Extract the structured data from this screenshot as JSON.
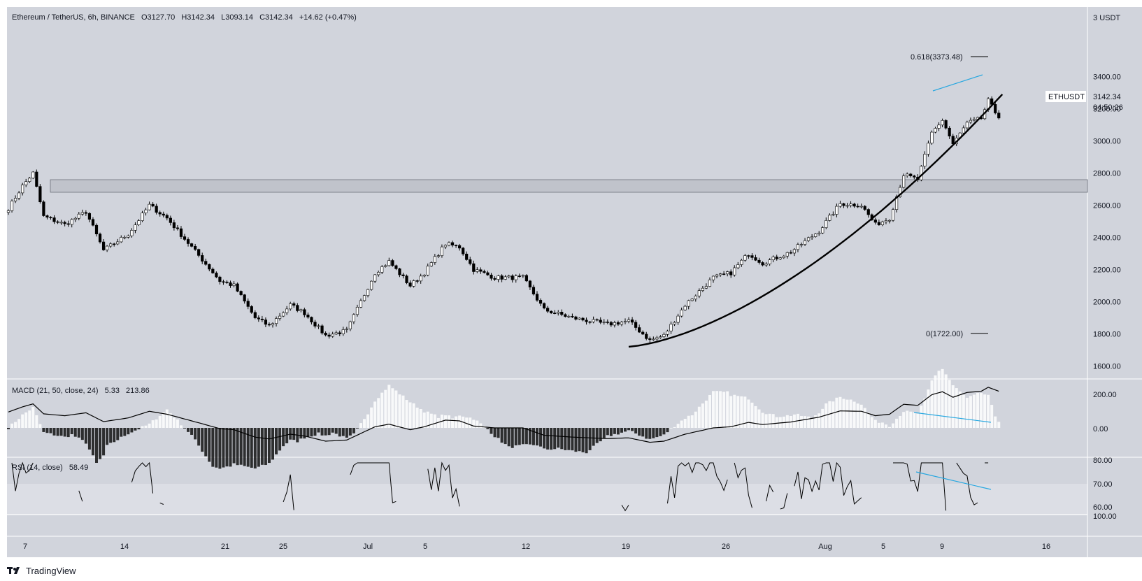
{
  "header": {
    "symbol": "Ethereum / TetherUS, 6h, BINANCE",
    "o_label": "O",
    "o_value": "3127.70",
    "h_label": "H",
    "h_value": "3142.34",
    "l_label": "L",
    "l_value": "3093.14",
    "c_label": "C",
    "c_value": "3142.34",
    "change": "+14.62 (+0.47%)"
  },
  "price_axis": {
    "unit": "USDT",
    "ticks": [
      "3400.00",
      "3200.00",
      "3000.00",
      "2800.00",
      "2600.00",
      "2400.00",
      "2200.00",
      "2000.00",
      "1800.00",
      "1600.00"
    ],
    "tag_label": "ETHUSDT",
    "tag_price": "3142.34",
    "tag_countdown": "04:50:26"
  },
  "fib": {
    "upper": "0.618(3373.48)",
    "lower": "0(1722.00)"
  },
  "macd": {
    "label": "MACD (21, 50, close, 24)",
    "value_hist": "5.33",
    "value_macd": "213.86",
    "ticks": [
      "200.00",
      "0.00"
    ]
  },
  "rsi": {
    "label": "RSI (14, close)",
    "value": "58.49",
    "ticks": [
      "80.00",
      "70.00",
      "60.00",
      "100.00"
    ]
  },
  "x_axis": {
    "ticks": [
      "7",
      "14",
      "21",
      "25",
      "Jul",
      "5",
      "12",
      "19",
      "26",
      "Aug",
      "5",
      "9",
      "16"
    ]
  },
  "footer": {
    "brand": "TradingView"
  },
  "colors": {
    "pane_bg": "#d1d4dc",
    "rsi_band": "#dcdee5",
    "up": "#ffffff",
    "down": "#000000",
    "line": "#000000",
    "divergence": "#26a7e0",
    "zone": "#b2b5be"
  },
  "chart_data": {
    "type": "candlestick",
    "symbol": "ETHUSDT",
    "interval": "6h",
    "exchange": "BINANCE",
    "y_range": [
      1520,
      3580
    ],
    "resistance_zone": [
      2575,
      2640
    ],
    "fib_levels": [
      {
        "ratio": 0.618,
        "price": 3373.48
      },
      {
        "ratio": 0,
        "price": 1722.0
      }
    ],
    "anchors": [
      {
        "t": 0,
        "p": 2580
      },
      {
        "t": 4,
        "p": 2720
      },
      {
        "t": 7,
        "p": 2800
      },
      {
        "t": 10,
        "p": 2530
      },
      {
        "t": 16,
        "p": 2480
      },
      {
        "t": 22,
        "p": 2560
      },
      {
        "t": 27,
        "p": 2320
      },
      {
        "t": 34,
        "p": 2420
      },
      {
        "t": 40,
        "p": 2600
      },
      {
        "t": 45,
        "p": 2520
      },
      {
        "t": 52,
        "p": 2340
      },
      {
        "t": 60,
        "p": 2130
      },
      {
        "t": 64,
        "p": 2100
      },
      {
        "t": 70,
        "p": 1900
      },
      {
        "t": 74,
        "p": 1850
      },
      {
        "t": 80,
        "p": 1980
      },
      {
        "t": 84,
        "p": 1930
      },
      {
        "t": 90,
        "p": 1790
      },
      {
        "t": 96,
        "p": 1820
      },
      {
        "t": 104,
        "p": 2180
      },
      {
        "t": 108,
        "p": 2250
      },
      {
        "t": 114,
        "p": 2100
      },
      {
        "t": 118,
        "p": 2180
      },
      {
        "t": 124,
        "p": 2360
      },
      {
        "t": 128,
        "p": 2340
      },
      {
        "t": 132,
        "p": 2200
      },
      {
        "t": 138,
        "p": 2150
      },
      {
        "t": 146,
        "p": 2150
      },
      {
        "t": 152,
        "p": 1950
      },
      {
        "t": 160,
        "p": 1900
      },
      {
        "t": 170,
        "p": 1860
      },
      {
        "t": 176,
        "p": 1880
      },
      {
        "t": 182,
        "p": 1760
      },
      {
        "t": 186,
        "p": 1790
      },
      {
        "t": 192,
        "p": 1980
      },
      {
        "t": 200,
        "p": 2150
      },
      {
        "t": 205,
        "p": 2180
      },
      {
        "t": 210,
        "p": 2300
      },
      {
        "t": 214,
        "p": 2240
      },
      {
        "t": 222,
        "p": 2310
      },
      {
        "t": 230,
        "p": 2440
      },
      {
        "t": 236,
        "p": 2610
      },
      {
        "t": 242,
        "p": 2600
      },
      {
        "t": 246,
        "p": 2480
      },
      {
        "t": 250,
        "p": 2520
      },
      {
        "t": 254,
        "p": 2790
      },
      {
        "t": 258,
        "p": 2760
      },
      {
        "t": 262,
        "p": 3050
      },
      {
        "t": 265,
        "p": 3130
      },
      {
        "t": 268,
        "p": 2980
      },
      {
        "t": 272,
        "p": 3110
      },
      {
        "t": 276,
        "p": 3140
      },
      {
        "t": 278,
        "p": 3250
      },
      {
        "t": 281,
        "p": 3142
      }
    ],
    "last_price": 3142.34,
    "macd_values": [
      5.33,
      213.86
    ],
    "rsi_value": 58.49
  }
}
